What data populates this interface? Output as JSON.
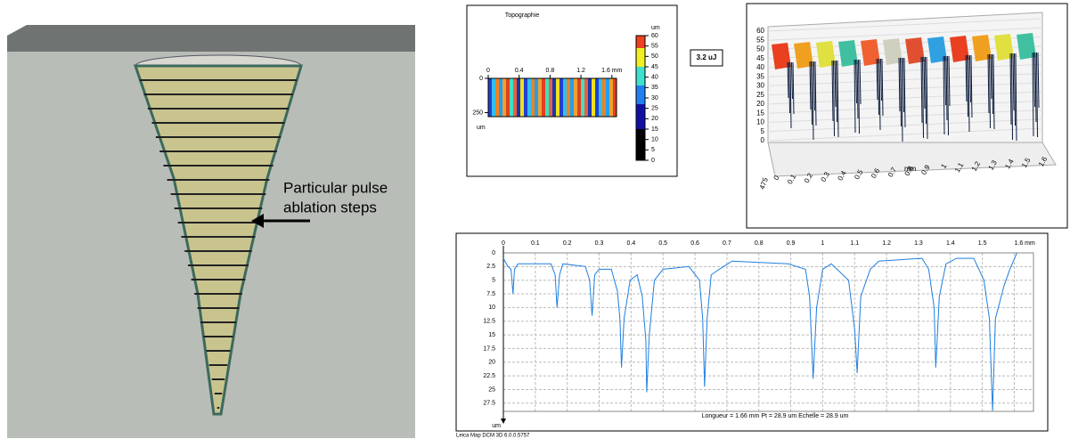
{
  "illustration": {
    "annotation": [
      "Particular pulse",
      "ablation steps"
    ]
  },
  "energy_label": "3.2 uJ",
  "software": "Leica Map DCM 3D 6.0.0.5757",
  "chart_data": [
    {
      "type": "heatmap",
      "title": "Topographie",
      "xlim": [
        0,
        1.66
      ],
      "xticks": [
        0,
        0.4,
        0.8,
        1.2,
        {
          "value": 1.6,
          "label": "1.6 mm"
        }
      ],
      "ylim": [
        0,
        475
      ],
      "yticks": [
        0,
        250
      ],
      "y_label": "um",
      "colorbar": {
        "label": "um",
        "lim": [
          0,
          60
        ],
        "ticks": [
          0,
          5,
          10,
          15,
          20,
          25,
          30,
          35,
          40,
          45,
          50,
          55,
          60
        ]
      }
    },
    {
      "type": "surface3d",
      "xlim": [
        0,
        1.66
      ],
      "xticks": [
        0,
        0.1,
        0.2,
        0.3,
        0.4,
        0.5,
        0.6,
        0.7,
        0.8,
        0.9,
        1,
        1.1,
        1.2,
        1.3,
        1.4,
        1.5,
        1.6
      ],
      "x_label": "mm",
      "yticks": [
        475
      ],
      "zlim": [
        0,
        60
      ],
      "zticks": [
        0,
        5,
        10,
        15,
        20,
        25,
        30,
        35,
        40,
        45,
        50,
        55,
        60
      ]
    },
    {
      "type": "line",
      "color": "#1f7fe0",
      "y_inverted": true,
      "grid": true,
      "x": [
        0,
        0.014,
        0.024,
        0.03,
        0.035,
        0.046,
        0.149,
        0.162,
        0.168,
        0.176,
        0.186,
        0.257,
        0.27,
        0.278,
        0.286,
        0.3,
        0.338,
        0.357,
        0.365,
        0.37,
        0.378,
        0.397,
        0.419,
        0.435,
        0.446,
        0.449,
        0.457,
        0.473,
        0.5,
        0.581,
        0.614,
        0.624,
        0.63,
        0.638,
        0.651,
        0.676,
        0.703,
        0.716,
        0.892,
        0.946,
        0.959,
        0.97,
        0.981,
        1.0,
        1.027,
        1.081,
        1.1,
        1.108,
        1.119,
        1.149,
        1.176,
        1.311,
        1.332,
        1.349,
        1.354,
        1.365,
        1.386,
        1.419,
        1.473,
        1.505,
        1.522,
        1.532,
        1.541,
        1.568,
        1.586,
        1.608
      ],
      "values": [
        1,
        2.5,
        3,
        7.5,
        3,
        2,
        2,
        4,
        10,
        4,
        2,
        2.5,
        5,
        11.5,
        4,
        3,
        3,
        7,
        12,
        21,
        12,
        5,
        4,
        8,
        16,
        25.5,
        15,
        5,
        3,
        2.5,
        5,
        12,
        24.5,
        12,
        4,
        3,
        2,
        1.5,
        2,
        3,
        8,
        23,
        10,
        3,
        2,
        5,
        14,
        22,
        8,
        3,
        1.5,
        1,
        3,
        10,
        21,
        8,
        2,
        1,
        1,
        5,
        12,
        28.9,
        12,
        6,
        3,
        0
      ],
      "xlim": [
        0,
        1.66
      ],
      "xticks": [
        0,
        0.1,
        0.2,
        0.3,
        0.4,
        0.5,
        0.6,
        0.7,
        0.8,
        0.9,
        1,
        1.1,
        1.2,
        1.3,
        1.4,
        1.5,
        {
          "value": 1.6,
          "label": "1.6 mm"
        }
      ],
      "ylim": [
        0,
        29
      ],
      "yticks": [
        0,
        2.5,
        5,
        7.5,
        10,
        12.5,
        15,
        17.5,
        20,
        22.5,
        25,
        27.5
      ],
      "y_label": "um",
      "caption": "Longueur = 1.66 mm  Pt = 28.9 um  Echelle = 28.9 um"
    }
  ]
}
